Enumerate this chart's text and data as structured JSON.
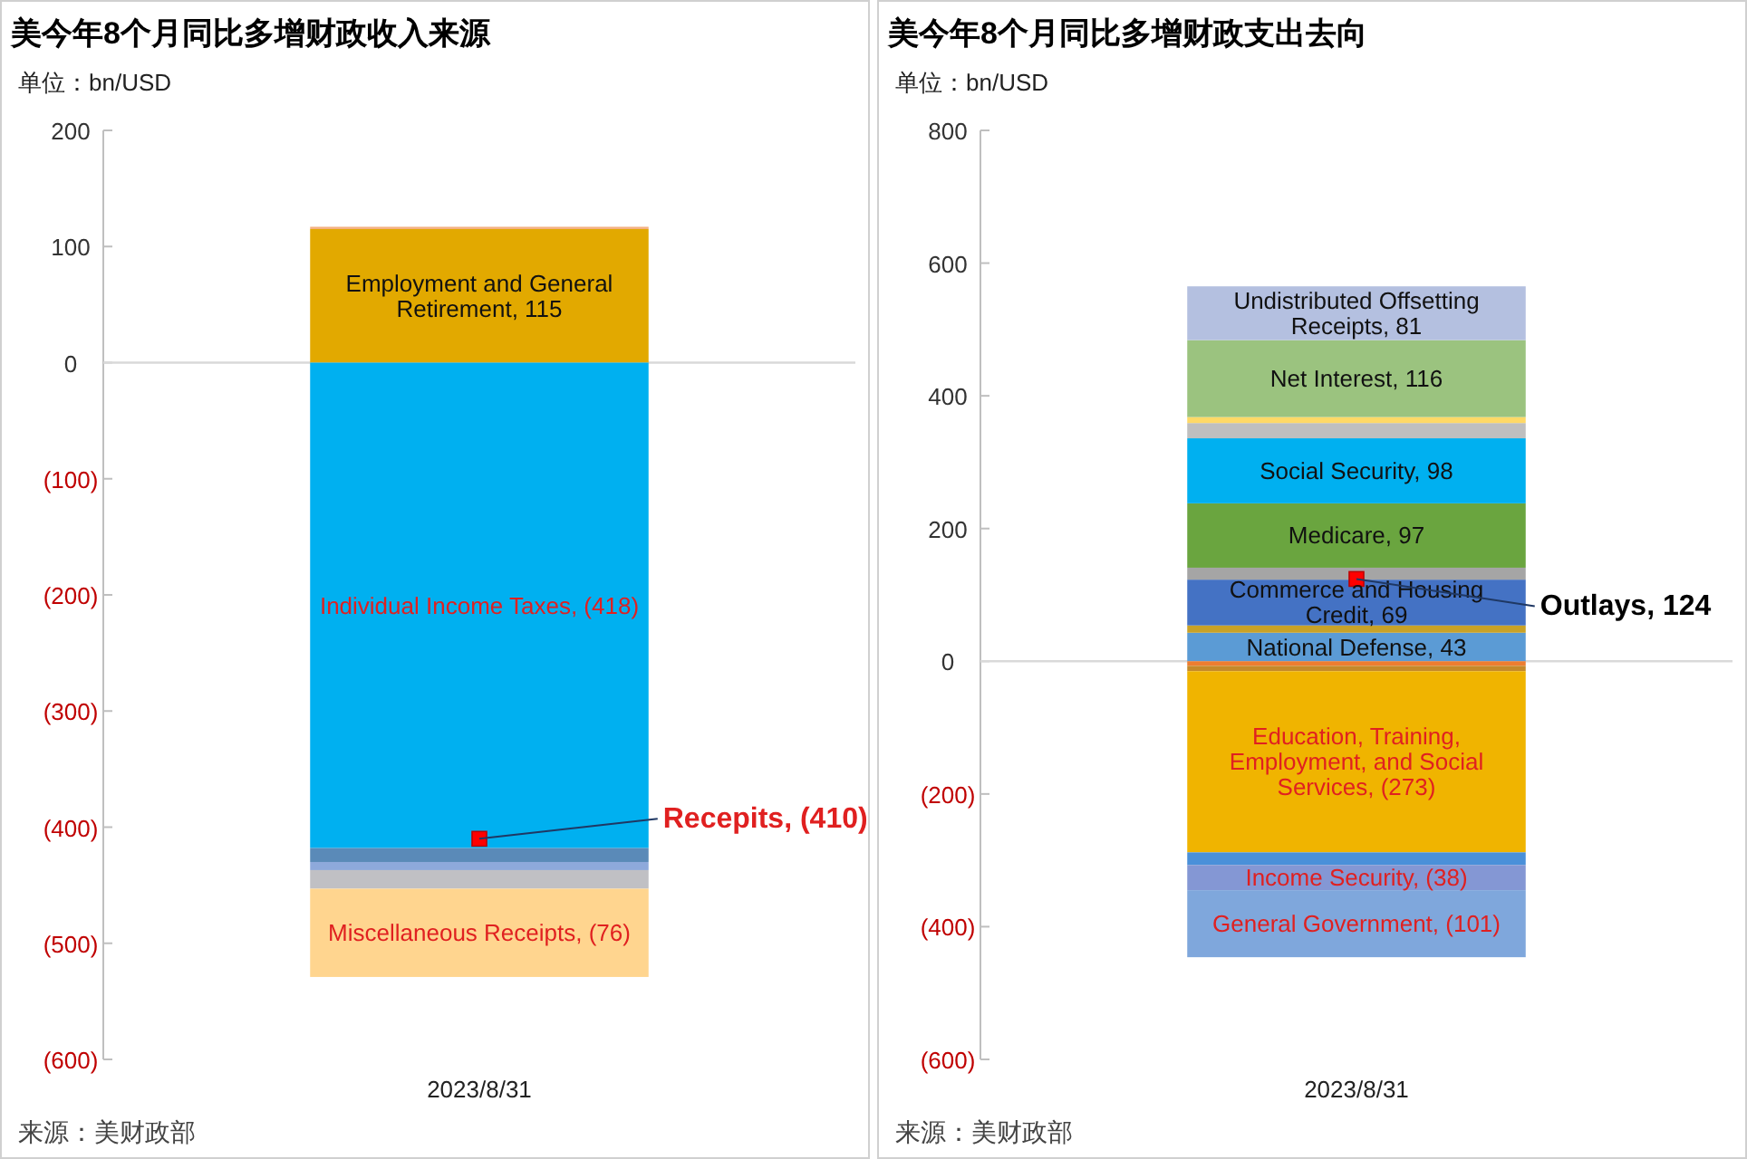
{
  "chart_data": [
    {
      "type": "bar",
      "stacked": true,
      "title": "美今年8个月同比多增财政收入来源",
      "ylabel": "单位：bn/USD",
      "categories": [
        "2023/8/31"
      ],
      "ylim": [
        -600,
        200
      ],
      "yticks": [
        200,
        100,
        0,
        {
          "value": -100,
          "label": "(100)"
        },
        {
          "value": -200,
          "label": "(200)"
        },
        {
          "value": -300,
          "label": "(300)"
        },
        {
          "value": -400,
          "label": "(400)"
        },
        {
          "value": -500,
          "label": "(500)"
        },
        {
          "value": -600,
          "label": "(600)"
        }
      ],
      "series": [
        {
          "color": "#e2a900",
          "values": [
            115
          ],
          "value_labels": [
            "Employment and General Retirement, 115"
          ]
        },
        {
          "color": "#f4b183",
          "values": [
            2
          ],
          "value_labels": [
            null
          ]
        },
        {
          "color": "#00b0f0",
          "values": [
            -418
          ],
          "value_labels": [
            "Individual Income Taxes, (418)"
          ]
        },
        {
          "color": "#5a8ab8",
          "values": [
            -12
          ],
          "value_labels": [
            null
          ]
        },
        {
          "color": "#8ea9db",
          "values": [
            -7
          ],
          "value_labels": [
            null
          ]
        },
        {
          "color": "#c0c0c4",
          "values": [
            -16
          ],
          "value_labels": [
            null
          ]
        },
        {
          "color": "#ffd58f",
          "values": [
            -76
          ],
          "value_labels": [
            "Miscellaneous Receipts, (76)"
          ]
        },
        {
          "type": "scatter",
          "marker": "square",
          "color": "#ff0000",
          "x": [
            "2023/8/31"
          ],
          "values": [
            -410
          ]
        }
      ],
      "annotations": [
        {
          "text": "Recepits, (410)",
          "x": "2023/8/31",
          "y": -410
        },
        "来源：美财政部"
      ]
    },
    {
      "type": "bar",
      "stacked": true,
      "title": "美今年8个月同比多增财政支出去向",
      "ylabel": "单位：bn/USD",
      "categories": [
        "2023/8/31"
      ],
      "ylim": [
        -600,
        800
      ],
      "yticks": [
        800,
        600,
        400,
        200,
        0,
        {
          "value": -200,
          "label": "(200)"
        },
        {
          "value": -400,
          "label": "(400)"
        },
        {
          "value": -600,
          "label": "(600)"
        }
      ],
      "series": [
        {
          "color": "#5b9bd5",
          "values": [
            43
          ],
          "value_labels": [
            "National Defense, 43"
          ]
        },
        {
          "color": "#c9a227",
          "values": [
            11
          ],
          "value_labels": [
            null
          ]
        },
        {
          "color": "#4472c4",
          "values": [
            69
          ],
          "value_labels": [
            "Commerce and Housing Credit, 69"
          ]
        },
        {
          "color": "#a5a5a5",
          "values": [
            18
          ],
          "value_labels": [
            null
          ]
        },
        {
          "color": "#6aa53f",
          "values": [
            97
          ],
          "value_labels": [
            "Medicare, 97"
          ]
        },
        {
          "color": "#00b0f0",
          "values": [
            98
          ],
          "value_labels": [
            "Social Security, 98"
          ]
        },
        {
          "color": "#bfbfbf",
          "values": [
            23
          ],
          "value_labels": [
            null
          ]
        },
        {
          "color": "#ffd966",
          "values": [
            9
          ],
          "value_labels": [
            null
          ]
        },
        {
          "color": "#9bc37f",
          "values": [
            116
          ],
          "value_labels": [
            "Net Interest, 116"
          ]
        },
        {
          "color": "#b4c0e0",
          "values": [
            81
          ],
          "value_labels": [
            "Undistributed Offsetting Receipts, 81"
          ]
        },
        {
          "color": "#ed7d31",
          "values": [
            -7
          ],
          "value_labels": [
            null
          ]
        },
        {
          "color": "#c5892a",
          "values": [
            -8
          ],
          "value_labels": [
            null
          ]
        },
        {
          "color": "#f0b400",
          "values": [
            -273
          ],
          "value_labels": [
            "Education, Training, Employment, and Social Services, (273)"
          ]
        },
        {
          "color": "#4a90d9",
          "values": [
            -19
          ],
          "value_labels": [
            null
          ]
        },
        {
          "color": "#8497d4",
          "values": [
            -38
          ],
          "value_labels": [
            "Income Security, (38)"
          ]
        },
        {
          "color": "#7fa7dc",
          "values": [
            -101
          ],
          "value_labels": [
            "General Government, (101)"
          ]
        },
        {
          "type": "scatter",
          "marker": "square",
          "color": "#ff0000",
          "x": [
            "2023/8/31"
          ],
          "values": [
            124
          ]
        }
      ],
      "annotations": [
        {
          "text": "Outlays, 124",
          "x": "2023/8/31",
          "y": 124
        },
        "来源：美财政部"
      ]
    }
  ]
}
